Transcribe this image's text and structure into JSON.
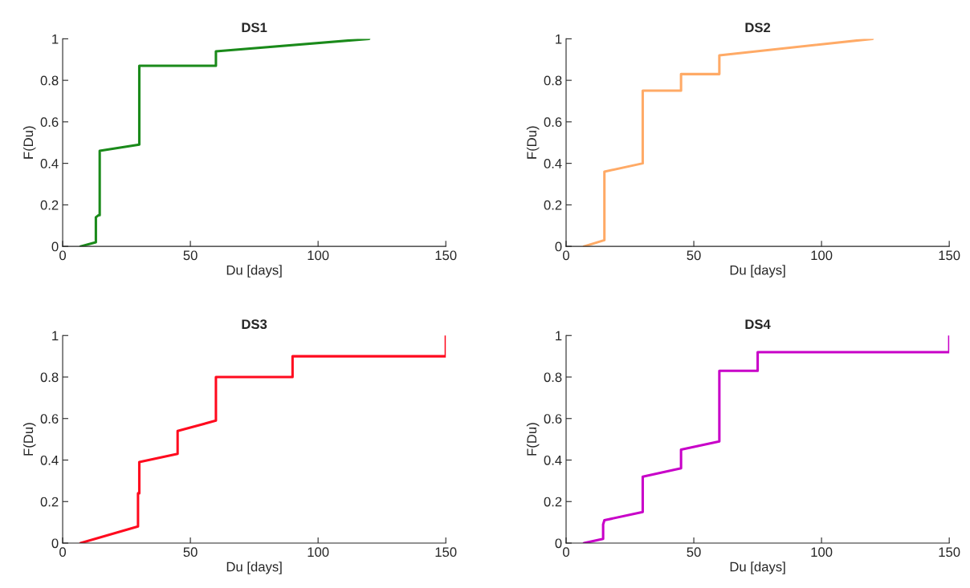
{
  "chart_data": [
    {
      "type": "line",
      "title": "DS1",
      "xlabel": "Du [days]",
      "ylabel": "F(Du)",
      "color": "#1a8a1a",
      "x": [
        7,
        13,
        13,
        14,
        14.5,
        14.5,
        30,
        30,
        60,
        60,
        120
      ],
      "values": [
        0,
        0.02,
        0.14,
        0.15,
        0.15,
        0.46,
        0.49,
        0.87,
        0.87,
        0.94,
        1
      ],
      "xlim": [
        0,
        150
      ],
      "ylim": [
        0,
        1
      ],
      "xticks": [
        0,
        50,
        100,
        150
      ],
      "yticks": [
        0,
        0.2,
        0.4,
        0.6,
        0.8,
        1
      ]
    },
    {
      "type": "line",
      "title": "DS2",
      "xlabel": "Du [days]",
      "ylabel": "F(Du)",
      "color": "#ffaa66",
      "x": [
        7,
        15,
        15,
        30,
        30,
        45,
        45,
        60,
        60,
        120
      ],
      "values": [
        0,
        0.03,
        0.36,
        0.4,
        0.75,
        0.75,
        0.83,
        0.83,
        0.92,
        1
      ],
      "xlim": [
        0,
        150
      ],
      "ylim": [
        0,
        1
      ],
      "xticks": [
        0,
        50,
        100,
        150
      ],
      "yticks": [
        0,
        0.2,
        0.4,
        0.6,
        0.8,
        1
      ]
    },
    {
      "type": "line",
      "title": "DS3",
      "xlabel": "Du [days]",
      "ylabel": "F(Du)",
      "color": "#ff0a1e",
      "x": [
        7,
        29.5,
        29.5,
        30,
        30,
        45,
        45,
        60,
        60,
        90,
        90,
        150,
        150
      ],
      "values": [
        0,
        0.08,
        0.24,
        0.24,
        0.39,
        0.43,
        0.54,
        0.59,
        0.8,
        0.8,
        0.9,
        0.9,
        1
      ],
      "xlim": [
        0,
        150
      ],
      "ylim": [
        0,
        1
      ],
      "xticks": [
        0,
        50,
        100,
        150
      ],
      "yticks": [
        0,
        0.2,
        0.4,
        0.6,
        0.8,
        1
      ]
    },
    {
      "type": "line",
      "title": "DS4",
      "xlabel": "Du [days]",
      "ylabel": "F(Du)",
      "color": "#c800c8",
      "x": [
        7,
        14.5,
        14.5,
        15,
        30,
        30,
        45,
        45,
        60,
        60,
        75,
        75,
        150,
        150
      ],
      "values": [
        0,
        0.02,
        0.09,
        0.11,
        0.15,
        0.32,
        0.36,
        0.45,
        0.49,
        0.83,
        0.83,
        0.92,
        0.92,
        1
      ],
      "xlim": [
        0,
        150
      ],
      "ylim": [
        0,
        1
      ],
      "xticks": [
        0,
        50,
        100,
        150
      ],
      "yticks": [
        0,
        0.2,
        0.4,
        0.6,
        0.8,
        1
      ]
    }
  ]
}
